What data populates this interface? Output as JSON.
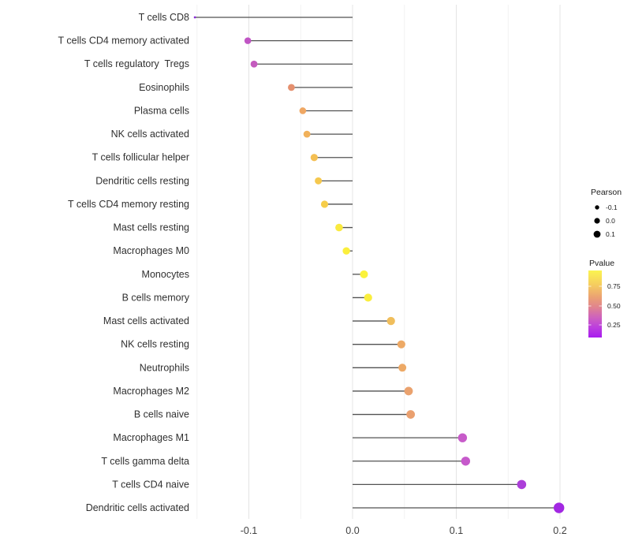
{
  "chart_data": {
    "type": "lollipop",
    "orientation": "horizontal",
    "title": "",
    "xlabel": "",
    "ylabel": "",
    "x_axis": {
      "tick_labels": [
        "-0.1",
        "0.0",
        "0.1",
        "0.2"
      ],
      "tick_values": [
        -0.1,
        0.0,
        0.1,
        0.2
      ],
      "minor_grid_values": [
        -0.15,
        -0.05,
        0.05,
        0.15
      ],
      "xlim": [
        -0.155,
        0.205
      ],
      "grid": "vertical-only"
    },
    "baseline_value": 0,
    "points": [
      {
        "category": "T cells CD8",
        "pearson": -0.152,
        "pvalue": 0.1,
        "color": "#8B2FD8",
        "radius": 1.4
      },
      {
        "category": "T cells CD4 memory activated",
        "pearson": -0.101,
        "pvalue": 0.33,
        "color": "#C055C4",
        "radius": 4.3
      },
      {
        "category": "T cells regulatory  Tregs",
        "pearson": -0.095,
        "pvalue": 0.35,
        "color": "#C45BBE",
        "radius": 4.4
      },
      {
        "category": "Eosinophils",
        "pearson": -0.059,
        "pvalue": 0.57,
        "color": "#E5906F",
        "radius": 4.4
      },
      {
        "category": "Plasma cells",
        "pearson": -0.048,
        "pvalue": 0.68,
        "color": "#EFA763",
        "radius": 4.3
      },
      {
        "category": "NK cells activated",
        "pearson": -0.044,
        "pvalue": 0.72,
        "color": "#F1B15A",
        "radius": 4.4
      },
      {
        "category": "T cells follicular helper",
        "pearson": -0.037,
        "pvalue": 0.76,
        "color": "#F4BF53",
        "radius": 4.6
      },
      {
        "category": "Dendritic cells resting",
        "pearson": -0.033,
        "pvalue": 0.79,
        "color": "#F5C84E",
        "radius": 4.5
      },
      {
        "category": "T cells CD4 memory resting",
        "pearson": -0.027,
        "pvalue": 0.81,
        "color": "#F6CD49",
        "radius": 4.6
      },
      {
        "category": "Mast cells resting",
        "pearson": -0.013,
        "pvalue": 0.88,
        "color": "#FAEA3F",
        "radius": 4.8
      },
      {
        "category": "Macrophages M0",
        "pearson": -0.006,
        "pvalue": 0.9,
        "color": "#FBEF3C",
        "radius": 4.7
      },
      {
        "category": "Monocytes",
        "pearson": 0.011,
        "pvalue": 0.91,
        "color": "#FBF23B",
        "radius": 5.0
      },
      {
        "category": "B cells memory",
        "pearson": 0.015,
        "pvalue": 0.89,
        "color": "#FAEE3D",
        "radius": 5.1
      },
      {
        "category": "Mast cells activated",
        "pearson": 0.037,
        "pvalue": 0.76,
        "color": "#F0BE5C",
        "radius": 5.2
      },
      {
        "category": "NK cells resting",
        "pearson": 0.047,
        "pvalue": 0.7,
        "color": "#EDA965",
        "radius": 5.1
      },
      {
        "category": "Neutrophils",
        "pearson": 0.048,
        "pvalue": 0.7,
        "color": "#EDA966",
        "radius": 5.0
      },
      {
        "category": "Macrophages M2",
        "pearson": 0.054,
        "pvalue": 0.66,
        "color": "#EAA26E",
        "radius": 5.4
      },
      {
        "category": "B cells naive",
        "pearson": 0.056,
        "pvalue": 0.66,
        "color": "#EAA06F",
        "radius": 5.4
      },
      {
        "category": "Macrophages M1",
        "pearson": 0.106,
        "pvalue": 0.36,
        "color": "#C75BC9",
        "radius": 5.7
      },
      {
        "category": "T cells gamma delta",
        "pearson": 0.109,
        "pvalue": 0.36,
        "color": "#C659CB",
        "radius": 5.7
      },
      {
        "category": "T cells CD4 naive",
        "pearson": 0.163,
        "pvalue": 0.22,
        "color": "#AC3FD9",
        "radius": 5.8
      },
      {
        "category": "Dendritic cells activated",
        "pearson": 0.199,
        "pvalue": 0.13,
        "color": "#A228E2",
        "radius": 6.7
      }
    ],
    "legends": {
      "size": {
        "title": "Pearson",
        "dot_color": "#000000",
        "entries": [
          {
            "label": "-0.1",
            "radius": 2.7
          },
          {
            "label": "0.0",
            "radius": 3.6
          },
          {
            "label": "0.1",
            "radius": 4.4
          }
        ]
      },
      "color": {
        "title": "Pvalue",
        "tick_labels": [
          "0.75",
          "0.50",
          "0.25"
        ],
        "tick_values": [
          0.75,
          0.5,
          0.25
        ],
        "gradient_top_to_bottom": [
          {
            "offset": 0.0,
            "color": "#FBF450"
          },
          {
            "offset": 0.22,
            "color": "#F5CB60"
          },
          {
            "offset": 0.4,
            "color": "#EBA173"
          },
          {
            "offset": 0.55,
            "color": "#E0838F"
          },
          {
            "offset": 0.7,
            "color": "#CE62BE"
          },
          {
            "offset": 0.85,
            "color": "#BC3EDE"
          },
          {
            "offset": 1.0,
            "color": "#A81BEF"
          }
        ]
      }
    },
    "style_colors": {
      "segment": "#525252",
      "grid_major": "#E4E4E4",
      "grid_minor": "#F2F2F2",
      "axis_text": "#404040",
      "category_text": "#303030",
      "legend_text": "#1A1A1A",
      "background": "#FFFFFF"
    }
  }
}
